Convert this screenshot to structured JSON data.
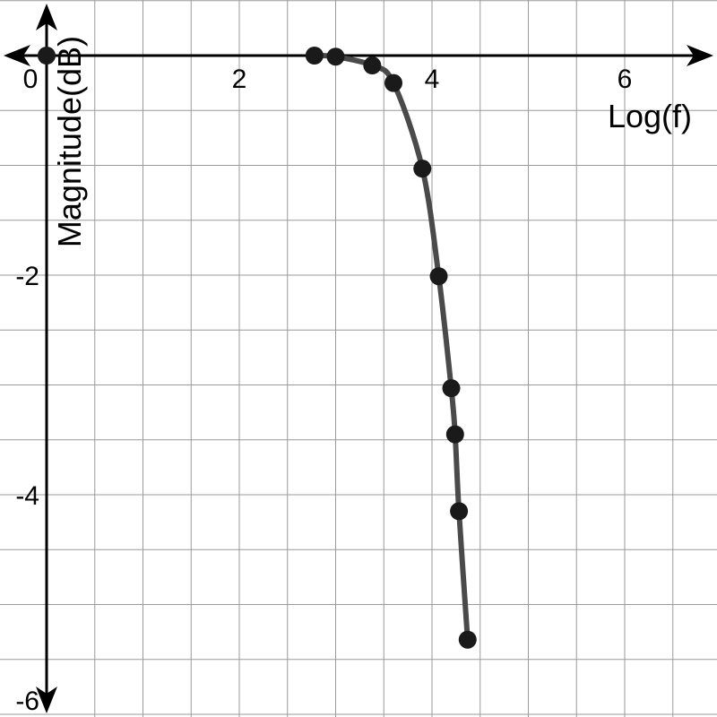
{
  "chart_data": {
    "type": "line",
    "title": "",
    "xlabel": "Log(f)",
    "ylabel": "Magnitude(dB)",
    "xlim": [
      -0.5,
      7
    ],
    "ylim": [
      -6.2,
      0.5
    ],
    "x_ticks": [
      0,
      2,
      4,
      6
    ],
    "x_tick_labels": [
      "0",
      "2",
      "4",
      "6"
    ],
    "y_ticks": [
      -2,
      -4,
      -6
    ],
    "y_tick_labels": [
      "-2",
      "-4",
      "-6"
    ],
    "grid": true,
    "colors": {
      "line": "#4a4a4a",
      "points": "#1a1a1a",
      "axes": "#000000",
      "grid": "#9a9a9a"
    },
    "series": [
      {
        "x": [
          0,
          2.78,
          3,
          3.38,
          3.6,
          3.9,
          4.07,
          4.2,
          4.24,
          4.28,
          4.37
        ],
        "y": [
          0,
          0,
          -0.01,
          -0.09,
          -0.25,
          -1.03,
          -2.01,
          -3.03,
          -3.45,
          -4.15,
          -5.32
        ]
      }
    ]
  }
}
